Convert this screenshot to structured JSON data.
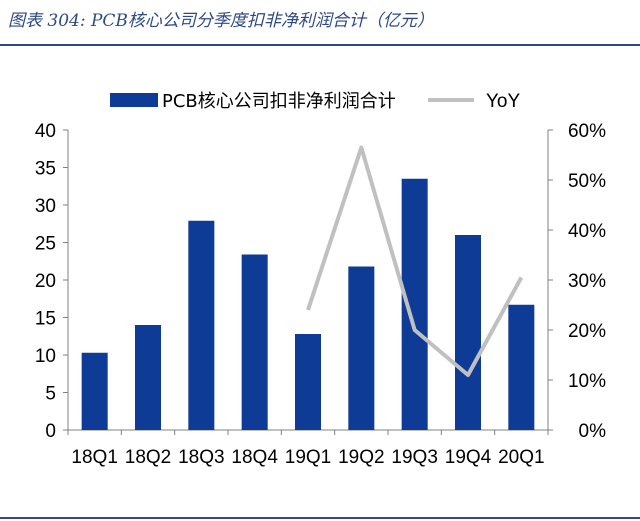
{
  "figure": {
    "title": "图表 304:  PCB核心公司分季度扣非净利润合计（亿元）"
  },
  "chart_data": {
    "type": "bar",
    "categories": [
      "18Q1",
      "18Q2",
      "18Q3",
      "18Q4",
      "19Q1",
      "19Q2",
      "19Q3",
      "19Q4",
      "20Q1"
    ],
    "series": [
      {
        "name": "PCB核心公司扣非净利润合计",
        "type": "bar",
        "axis": "left",
        "color": "#0d3b96",
        "values": [
          10.3,
          14.0,
          27.9,
          23.4,
          12.8,
          21.8,
          33.5,
          26.0,
          16.7
        ]
      },
      {
        "name": "YoY",
        "type": "line",
        "axis": "right",
        "color": "#c0c0c0",
        "values": [
          null,
          null,
          null,
          null,
          0.24,
          0.565,
          0.2,
          0.11,
          0.305
        ]
      }
    ],
    "left_axis": {
      "ylim": [
        0,
        40
      ],
      "ticks": [
        0,
        5,
        10,
        15,
        20,
        25,
        30,
        35,
        40
      ]
    },
    "right_axis": {
      "ylim": [
        0,
        0.6
      ],
      "ticks": [
        0,
        0.1,
        0.2,
        0.3,
        0.4,
        0.5,
        0.6
      ],
      "tick_labels": [
        "0%",
        "10%",
        "20%",
        "30%",
        "40%",
        "50%",
        "60%"
      ]
    },
    "legend": {
      "placement": "top",
      "items": [
        "PCB核心公司扣非净利润合计",
        "YoY"
      ]
    },
    "grid": false
  }
}
